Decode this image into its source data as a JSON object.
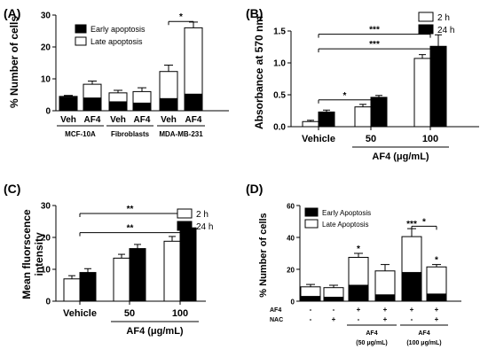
{
  "chart_data": [
    {
      "panel_label": "(A)",
      "type": "bar",
      "stacked": true,
      "ylabel": "% Number of cells",
      "ylim": [
        0,
        30
      ],
      "yticks": [
        0,
        10,
        20,
        30
      ],
      "categories": [
        "Veh",
        "AF4",
        "Veh",
        "AF4",
        "Veh",
        "AF4"
      ],
      "groups": [
        {
          "label": "MCF-10A",
          "categories": [
            0,
            1
          ]
        },
        {
          "label": "Fibroblasts",
          "categories": [
            2,
            3
          ]
        },
        {
          "label": "MDA-MB-231",
          "categories": [
            4,
            5
          ]
        }
      ],
      "series": [
        {
          "name": "Early apoptosis",
          "color": "#000000",
          "values": [
            4.2,
            4.0,
            2.8,
            2.4,
            3.8,
            5.2
          ],
          "errors": [
            0.5,
            0.8,
            1.0,
            0.8,
            1.2,
            1.0
          ]
        },
        {
          "name": "Late apoptosis",
          "color": "#ffffff",
          "values": [
            0.3,
            4.3,
            2.8,
            3.6,
            8.5,
            20.8
          ],
          "errors": [
            0.3,
            1.0,
            0.8,
            1.2,
            2.0,
            1.8
          ]
        }
      ],
      "legend": "top-right",
      "annotations": [
        {
          "text": "*",
          "from": 4,
          "to": 5,
          "y": 28
        }
      ]
    },
    {
      "panel_label": "(B)",
      "type": "bar",
      "ylabel": "Absorbance at 570 nm",
      "xlabel": "AF4 (μg/mL)",
      "ylim": [
        0,
        1.5
      ],
      "yticks": [
        0.0,
        0.5,
        1.0,
        1.5
      ],
      "ytick_labels": [
        "0.0",
        "0.5",
        "1.0",
        "1.5"
      ],
      "categories": [
        "Vehicle",
        "50",
        "100"
      ],
      "series": [
        {
          "name": "2 h",
          "color": "#ffffff",
          "values": [
            0.08,
            0.31,
            1.07
          ],
          "errors": [
            0.02,
            0.04,
            0.06
          ]
        },
        {
          "name": "24 h",
          "color": "#000000",
          "values": [
            0.23,
            0.46,
            1.26
          ],
          "errors": [
            0.03,
            0.03,
            0.18
          ]
        }
      ],
      "legend": "top-right",
      "annotations": [
        {
          "text": "*",
          "from": 0,
          "to": 1,
          "y": 0.42
        },
        {
          "text": "***",
          "from": 0,
          "to": 2,
          "y": 1.22
        },
        {
          "text": "***",
          "from": 0,
          "to": 2,
          "y": 1.45
        }
      ]
    },
    {
      "panel_label": "(C)",
      "type": "bar",
      "ylabel_lines": [
        "Mean fluorscence",
        "intensity"
      ],
      "xlabel": "AF4 (μg/mL)",
      "ylim": [
        0,
        30
      ],
      "yticks": [
        0,
        10,
        20,
        30
      ],
      "categories": [
        "Vehicle",
        "50",
        "100"
      ],
      "series": [
        {
          "name": "2 h",
          "color": "#ffffff",
          "values": [
            7.0,
            13.5,
            18.8
          ],
          "errors": [
            1.0,
            1.2,
            1.5
          ]
        },
        {
          "name": "24 h",
          "color": "#000000",
          "values": [
            9.0,
            16.5,
            23.0
          ],
          "errors": [
            1.2,
            1.3,
            2.0
          ]
        }
      ],
      "legend": "top-right",
      "annotations": [
        {
          "text": "**",
          "from": 0,
          "to": 2,
          "y": 21.5
        },
        {
          "text": "**",
          "from": 0,
          "to": 2,
          "y": 27.5
        }
      ]
    },
    {
      "panel_label": "(D)",
      "type": "bar",
      "stacked": true,
      "ylabel": "% Number of cells",
      "ylim": [
        0,
        60
      ],
      "yticks": [
        0,
        20,
        40,
        60
      ],
      "categories": [
        "1",
        "2",
        "3",
        "4",
        "5",
        "6"
      ],
      "row_labels": [
        "AF4",
        "NAC"
      ],
      "row_values": [
        [
          "-",
          "-",
          "+",
          "+",
          "+",
          "+"
        ],
        [
          "-",
          "+",
          "-",
          "+",
          "-",
          "+"
        ]
      ],
      "groups": [
        {
          "label_lines": [
            "AF4",
            "(50 μg/mL)"
          ],
          "categories": [
            2,
            3
          ]
        },
        {
          "label_lines": [
            "AF4",
            "(100 μg/mL)"
          ],
          "categories": [
            4,
            5
          ]
        }
      ],
      "series": [
        {
          "name": "Early Apoptosis",
          "color": "#000000",
          "values": [
            3.0,
            2.5,
            10.0,
            4.0,
            18.0,
            4.5
          ],
          "errors": [
            0.8,
            0.8,
            3.0,
            1.0,
            3.0,
            1.0
          ]
        },
        {
          "name": "Late Apoptosis",
          "color": "#ffffff",
          "values": [
            6.0,
            6.0,
            17.5,
            15.0,
            22.5,
            17.0
          ],
          "errors": [
            1.5,
            1.5,
            2.5,
            4.0,
            5.0,
            1.5
          ]
        }
      ],
      "legend": "top-left",
      "star_labels": [
        {
          "index": 2,
          "text": "*"
        },
        {
          "index": 4,
          "text": "***"
        },
        {
          "index": 5,
          "text": "*"
        }
      ],
      "annotations": [
        {
          "text": "*",
          "from": 4,
          "to": 5,
          "y": 47
        }
      ]
    }
  ]
}
